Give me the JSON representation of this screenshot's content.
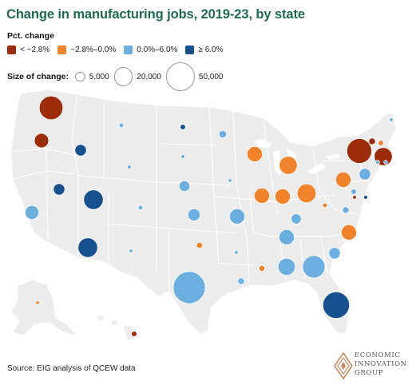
{
  "title": "Change in manufacturing jobs, 2019-23, by state",
  "legend": {
    "color_title": "Pct. change",
    "color_bins": [
      {
        "label": "< −2.8%",
        "color": "#9c2c0a"
      },
      {
        "label": "−2.8%–0.0%",
        "color": "#f2832a"
      },
      {
        "label": "0.0%–6.0%",
        "color": "#6baee0"
      },
      {
        "label": "≥ 6.0%",
        "color": "#16508f"
      }
    ],
    "size_title": "Size of change:",
    "size_bins": [
      {
        "label": "5,000",
        "value": 5000
      },
      {
        "label": "20,000",
        "value": 20000
      },
      {
        "label": "50,000",
        "value": 50000
      }
    ]
  },
  "source": "Source: EIG analysis of QCEW data",
  "logo": {
    "lines": [
      "ECONOMIC",
      "INNOVATION",
      "GROUP"
    ]
  },
  "colors": {
    "land": "#ececec",
    "border": "#ffffff",
    "title": "#1f6b50"
  },
  "chart_data": {
    "type": "proportional-symbol-map",
    "size_metric": "absolute change in manufacturing jobs, 2019-23",
    "states": [
      {
        "state": "WA",
        "bin": 0,
        "change": 38000
      },
      {
        "state": "OR",
        "bin": 0,
        "change": 14000
      },
      {
        "state": "ID",
        "bin": 3,
        "change": 9000
      },
      {
        "state": "NV",
        "bin": 3,
        "change": 9000
      },
      {
        "state": "CA",
        "bin": 2,
        "change": 13000
      },
      {
        "state": "UT",
        "bin": 3,
        "change": 26000
      },
      {
        "state": "AZ",
        "bin": 3,
        "change": 26000
      },
      {
        "state": "MT",
        "bin": 2,
        "change": 1500
      },
      {
        "state": "WY",
        "bin": 2,
        "change": 1000
      },
      {
        "state": "CO",
        "bin": 2,
        "change": 1500
      },
      {
        "state": "NM",
        "bin": 2,
        "change": 800
      },
      {
        "state": "ND",
        "bin": 3,
        "change": 2000
      },
      {
        "state": "SD",
        "bin": 2,
        "change": 1000
      },
      {
        "state": "NE",
        "bin": 2,
        "change": 8000
      },
      {
        "state": "KS",
        "bin": 2,
        "change": 10000
      },
      {
        "state": "OK",
        "bin": 1,
        "change": 2500
      },
      {
        "state": "TX",
        "bin": 2,
        "change": 70000
      },
      {
        "state": "MN",
        "bin": 2,
        "change": 4000
      },
      {
        "state": "IA",
        "bin": 2,
        "change": 700
      },
      {
        "state": "MO",
        "bin": 2,
        "change": 16000
      },
      {
        "state": "AR",
        "bin": 2,
        "change": 1000
      },
      {
        "state": "LA",
        "bin": 2,
        "change": 3000
      },
      {
        "state": "WI",
        "bin": 1,
        "change": 16000
      },
      {
        "state": "IL",
        "bin": 1,
        "change": 16000
      },
      {
        "state": "MI",
        "bin": 1,
        "change": 22000
      },
      {
        "state": "IN",
        "bin": 1,
        "change": 16000
      },
      {
        "state": "OH",
        "bin": 1,
        "change": 24000
      },
      {
        "state": "KY",
        "bin": 2,
        "change": 7000
      },
      {
        "state": "TN",
        "bin": 2,
        "change": 16000
      },
      {
        "state": "MS",
        "bin": 1,
        "change": 2500
      },
      {
        "state": "AL",
        "bin": 2,
        "change": 20000
      },
      {
        "state": "GA",
        "bin": 2,
        "change": 34000
      },
      {
        "state": "FL",
        "bin": 3,
        "change": 48000
      },
      {
        "state": "SC",
        "bin": 2,
        "change": 9000
      },
      {
        "state": "NC",
        "bin": 1,
        "change": 16000
      },
      {
        "state": "VA",
        "bin": 2,
        "change": 3000
      },
      {
        "state": "WV",
        "bin": 1,
        "change": 1500
      },
      {
        "state": "PA",
        "bin": 1,
        "change": 16000
      },
      {
        "state": "NY",
        "bin": 0,
        "change": 42000
      },
      {
        "state": "VT",
        "bin": 0,
        "change": 3000
      },
      {
        "state": "NH",
        "bin": 1,
        "change": 2000
      },
      {
        "state": "ME",
        "bin": 2,
        "change": 700
      },
      {
        "state": "MA",
        "bin": 0,
        "change": 22000
      },
      {
        "state": "RI",
        "bin": 2,
        "change": 800
      },
      {
        "state": "CT",
        "bin": 2,
        "change": 1000
      },
      {
        "state": "NJ",
        "bin": 2,
        "change": 9000
      },
      {
        "state": "DE",
        "bin": 3,
        "change": 1000
      },
      {
        "state": "MD",
        "bin": 2,
        "change": 2000
      },
      {
        "state": "DC",
        "bin": 0,
        "change": 400
      },
      {
        "state": "AK",
        "bin": 1,
        "change": 600
      },
      {
        "state": "HI",
        "bin": 0,
        "change": 2000
      }
    ]
  }
}
